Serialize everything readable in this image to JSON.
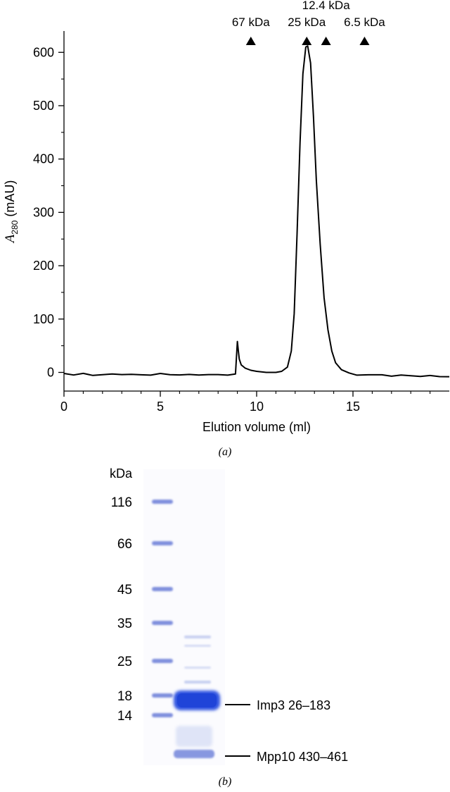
{
  "chart_data": [
    {
      "type": "line",
      "xlabel": "Elution volume (ml)",
      "ylabel_main": "A",
      "ylabel_sub": "280",
      "ylabel_unit": " (mAU)",
      "xlim": [
        0,
        20
      ],
      "ylim": [
        -35,
        640
      ],
      "x_ticks": [
        0,
        5,
        10,
        15
      ],
      "y_ticks": [
        0,
        100,
        200,
        300,
        400,
        500,
        600
      ],
      "grid": false,
      "series": [
        {
          "x": [
            0,
            0.5,
            1,
            1.5,
            2,
            2.5,
            3,
            3.5,
            4,
            4.5,
            5,
            5.5,
            6,
            6.5,
            7,
            7.5,
            8,
            8.5,
            8.9,
            9.0,
            9.05,
            9.1,
            9.2,
            9.4,
            9.7,
            10.0,
            10.5,
            11.0,
            11.3,
            11.6,
            11.8,
            11.95,
            12.1,
            12.25,
            12.4,
            12.55,
            12.65,
            12.8,
            12.95,
            13.1,
            13.3,
            13.5,
            13.7,
            13.9,
            14.1,
            14.4,
            14.8,
            15.2,
            15.8,
            16.5,
            17,
            17.5,
            18,
            18.5,
            19,
            19.5,
            20
          ],
          "y": [
            -2,
            -4,
            -3,
            -5,
            -4,
            -4,
            -3,
            -4,
            -5,
            -4,
            -3,
            -4,
            -4,
            -5,
            -4,
            -4,
            -5,
            -4,
            -3,
            58,
            40,
            25,
            14,
            8,
            4,
            2,
            0,
            0,
            2,
            10,
            40,
            110,
            260,
            430,
            560,
            610,
            612,
            580,
            480,
            360,
            240,
            140,
            80,
            40,
            18,
            5,
            -2,
            -4,
            -5,
            -5,
            -6,
            -6,
            -6,
            -7,
            -7,
            -7,
            -8
          ]
        }
      ],
      "markers": [
        {
          "label": "67 kDa",
          "x": 9.7
        },
        {
          "label": "25 kDa",
          "x": 12.6
        },
        {
          "label": "12.4 kDa",
          "x": 13.6
        },
        {
          "label": "6.5 kDa",
          "x": 15.6
        }
      ],
      "caption": "(a)"
    },
    {
      "type": "other",
      "unit_label": "kDa",
      "ladder": [
        {
          "label": "116",
          "kda": 116
        },
        {
          "label": "66",
          "kda": 66
        },
        {
          "label": "45",
          "kda": 45
        },
        {
          "label": "35",
          "kda": 35
        },
        {
          "label": "25",
          "kda": 25
        },
        {
          "label": "18",
          "kda": 18
        },
        {
          "label": "14",
          "kda": 14
        }
      ],
      "sample_bands": [
        {
          "label": "Imp3 26–183"
        },
        {
          "label": "Mpp10 430–461"
        }
      ],
      "band_color": "#3f5fd8",
      "caption": "(b)"
    }
  ]
}
